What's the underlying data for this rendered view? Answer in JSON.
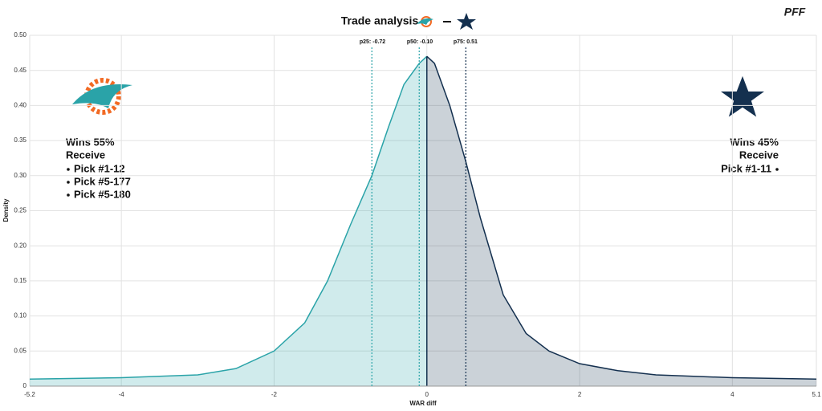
{
  "chart_data": {
    "type": "area",
    "title": "Trade analysis",
    "brand": "PFF",
    "x_label": "WAR diff",
    "y_label": "Density",
    "x": [
      -5.2,
      -4,
      -3,
      -2.5,
      -2,
      -1.6,
      -1.3,
      -1.0,
      -0.72,
      -0.5,
      -0.3,
      -0.1,
      0,
      0.1,
      0.3,
      0.51,
      0.7,
      1.0,
      1.3,
      1.6,
      2.0,
      2.5,
      3,
      4,
      5.1
    ],
    "values": [
      0.01,
      0.012,
      0.016,
      0.025,
      0.05,
      0.09,
      0.15,
      0.23,
      0.3,
      0.37,
      0.43,
      0.46,
      0.47,
      0.46,
      0.4,
      0.32,
      0.24,
      0.13,
      0.075,
      0.05,
      0.032,
      0.022,
      0.016,
      0.012,
      0.01
    ],
    "colors": [
      "#2aa3a8",
      "#14304f"
    ],
    "xlim": [
      -5.2,
      5.1
    ],
    "xticks": [
      -5.2,
      -4,
      -2,
      0,
      2,
      4,
      5.1
    ],
    "ylim": [
      0,
      0.5
    ],
    "yticks": [
      0,
      0.05,
      {
        "value": 0.1,
        "label": "0.10"
      },
      0.15,
      {
        "value": 0.2,
        "label": "0.20"
      },
      0.25,
      {
        "value": 0.3,
        "label": "0.30"
      },
      0.35,
      {
        "value": 0.4,
        "label": "0.40"
      },
      0.45,
      {
        "value": 0.5,
        "label": "0.50"
      }
    ],
    "grid": true,
    "percentiles": {
      "names": [
        "p25:",
        "p50:",
        "p75:"
      ],
      "values": [
        -0.72,
        -0.1,
        0.51
      ],
      "value_labels": [
        "-0.72",
        "-0.10",
        "0.51"
      ],
      "colors": [
        "#2aa3a8",
        "#2aa3a8",
        "#14304f"
      ]
    },
    "teams": [
      {
        "result": "Wins 55%",
        "color": "#2e8b57",
        "receive": "Receive",
        "picks": [
          "Pick #1-12",
          "Pick #5-177",
          "Pick #5-180"
        ]
      },
      {
        "result": "Wins 45%",
        "color": "#d0393a",
        "receive": "Receive",
        "picks": [
          "Pick #1-11"
        ]
      }
    ]
  }
}
